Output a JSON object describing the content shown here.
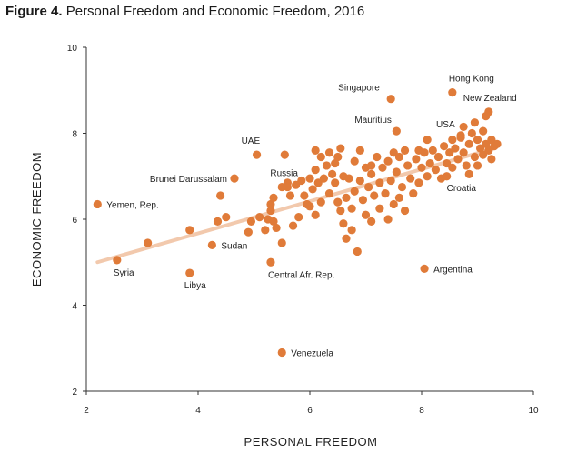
{
  "figure_label": "Figure 4.",
  "figure_title": "Personal Freedom and Economic Freedom, 2016",
  "colors": {
    "point": "#e07b39",
    "trend": "#f2c9ad",
    "axis": "#333333"
  },
  "chart_data": {
    "type": "scatter",
    "title": "Personal Freedom and Economic Freedom, 2016",
    "xlabel": "PERSONAL FREEDOM",
    "ylabel": "ECONOMIC FREEDOM",
    "xlim": [
      2,
      10
    ],
    "ylim": [
      2,
      10
    ],
    "xticks": [
      2,
      4,
      6,
      8,
      10
    ],
    "yticks": [
      2,
      4,
      6,
      8,
      10
    ],
    "grid": false,
    "trendline": {
      "x": [
        2.2,
        9.3
      ],
      "y": [
        5.0,
        7.65
      ]
    },
    "labeled_points": [
      {
        "name": "Yemen, Rep.",
        "x": 2.2,
        "y": 6.35
      },
      {
        "name": "Syria",
        "x": 2.55,
        "y": 5.05
      },
      {
        "name": "Libya",
        "x": 3.85,
        "y": 4.75
      },
      {
        "name": "Sudan",
        "x": 4.25,
        "y": 5.4
      },
      {
        "name": "Brunei Darussalam",
        "x": 4.65,
        "y": 6.95
      },
      {
        "name": "UAE",
        "x": 5.05,
        "y": 7.5
      },
      {
        "name": "Russia",
        "x": 5.6,
        "y": 6.75
      },
      {
        "name": "Central Afr. Rep.",
        "x": 5.3,
        "y": 5.0
      },
      {
        "name": "Venezuela",
        "x": 5.5,
        "y": 2.9
      },
      {
        "name": "Singapore",
        "x": 7.45,
        "y": 8.8
      },
      {
        "name": "Mauritius",
        "x": 7.55,
        "y": 8.05
      },
      {
        "name": "Hong Kong",
        "x": 8.55,
        "y": 8.95
      },
      {
        "name": "New Zealand",
        "x": 9.2,
        "y": 8.5
      },
      {
        "name": "USA",
        "x": 8.7,
        "y": 7.95
      },
      {
        "name": "Croatia",
        "x": 8.45,
        "y": 7.0
      },
      {
        "name": "Argentina",
        "x": 8.05,
        "y": 4.85
      }
    ],
    "points": [
      {
        "x": 3.1,
        "y": 5.45
      },
      {
        "x": 3.85,
        "y": 5.75
      },
      {
        "x": 4.35,
        "y": 5.95
      },
      {
        "x": 4.4,
        "y": 6.55
      },
      {
        "x": 4.5,
        "y": 6.05
      },
      {
        "x": 4.9,
        "y": 5.7
      },
      {
        "x": 4.95,
        "y": 5.95
      },
      {
        "x": 5.1,
        "y": 6.05
      },
      {
        "x": 5.2,
        "y": 5.75
      },
      {
        "x": 5.25,
        "y": 6.0
      },
      {
        "x": 5.3,
        "y": 6.35
      },
      {
        "x": 5.3,
        "y": 6.2
      },
      {
        "x": 5.35,
        "y": 6.5
      },
      {
        "x": 5.35,
        "y": 5.95
      },
      {
        "x": 5.4,
        "y": 5.8
      },
      {
        "x": 5.5,
        "y": 6.75
      },
      {
        "x": 5.5,
        "y": 5.45
      },
      {
        "x": 5.55,
        "y": 7.5
      },
      {
        "x": 5.6,
        "y": 6.85
      },
      {
        "x": 5.65,
        "y": 6.55
      },
      {
        "x": 5.7,
        "y": 5.85
      },
      {
        "x": 5.75,
        "y": 6.8
      },
      {
        "x": 5.8,
        "y": 6.05
      },
      {
        "x": 5.85,
        "y": 6.9
      },
      {
        "x": 5.9,
        "y": 6.55
      },
      {
        "x": 5.95,
        "y": 6.35
      },
      {
        "x": 6.0,
        "y": 6.95
      },
      {
        "x": 6.05,
        "y": 6.7
      },
      {
        "x": 6.0,
        "y": 6.3
      },
      {
        "x": 6.1,
        "y": 6.1
      },
      {
        "x": 6.1,
        "y": 7.15
      },
      {
        "x": 6.15,
        "y": 6.85
      },
      {
        "x": 6.2,
        "y": 6.4
      },
      {
        "x": 6.1,
        "y": 7.6
      },
      {
        "x": 6.2,
        "y": 7.45
      },
      {
        "x": 6.25,
        "y": 6.95
      },
      {
        "x": 6.3,
        "y": 7.25
      },
      {
        "x": 6.35,
        "y": 6.6
      },
      {
        "x": 6.35,
        "y": 7.55
      },
      {
        "x": 6.4,
        "y": 7.05
      },
      {
        "x": 6.45,
        "y": 6.85
      },
      {
        "x": 6.45,
        "y": 7.3
      },
      {
        "x": 6.5,
        "y": 7.45
      },
      {
        "x": 6.5,
        "y": 6.4
      },
      {
        "x": 6.55,
        "y": 7.65
      },
      {
        "x": 6.55,
        "y": 6.2
      },
      {
        "x": 6.6,
        "y": 7.0
      },
      {
        "x": 6.6,
        "y": 5.9
      },
      {
        "x": 6.65,
        "y": 6.5
      },
      {
        "x": 6.65,
        "y": 5.55
      },
      {
        "x": 6.7,
        "y": 6.95
      },
      {
        "x": 6.75,
        "y": 6.25
      },
      {
        "x": 6.75,
        "y": 5.75
      },
      {
        "x": 6.8,
        "y": 7.35
      },
      {
        "x": 6.8,
        "y": 6.65
      },
      {
        "x": 6.85,
        "y": 5.25
      },
      {
        "x": 6.9,
        "y": 7.6
      },
      {
        "x": 6.9,
        "y": 6.9
      },
      {
        "x": 6.95,
        "y": 6.45
      },
      {
        "x": 7.0,
        "y": 7.2
      },
      {
        "x": 7.0,
        "y": 6.1
      },
      {
        "x": 7.05,
        "y": 6.75
      },
      {
        "x": 7.1,
        "y": 7.05
      },
      {
        "x": 7.1,
        "y": 5.95
      },
      {
        "x": 7.15,
        "y": 6.55
      },
      {
        "x": 7.2,
        "y": 7.45
      },
      {
        "x": 7.25,
        "y": 6.85
      },
      {
        "x": 7.25,
        "y": 6.25
      },
      {
        "x": 7.3,
        "y": 7.2
      },
      {
        "x": 7.35,
        "y": 6.6
      },
      {
        "x": 7.4,
        "y": 7.35
      },
      {
        "x": 7.4,
        "y": 6.0
      },
      {
        "x": 7.45,
        "y": 6.9
      },
      {
        "x": 7.5,
        "y": 7.55
      },
      {
        "x": 7.5,
        "y": 6.35
      },
      {
        "x": 7.55,
        "y": 7.1
      },
      {
        "x": 7.6,
        "y": 6.5
      },
      {
        "x": 7.6,
        "y": 7.45
      },
      {
        "x": 7.65,
        "y": 6.75
      },
      {
        "x": 7.7,
        "y": 7.6
      },
      {
        "x": 7.7,
        "y": 6.2
      },
      {
        "x": 7.75,
        "y": 7.25
      },
      {
        "x": 7.8,
        "y": 6.95
      },
      {
        "x": 7.85,
        "y": 6.6
      },
      {
        "x": 7.9,
        "y": 7.4
      },
      {
        "x": 7.95,
        "y": 6.85
      },
      {
        "x": 8.0,
        "y": 7.2
      },
      {
        "x": 8.05,
        "y": 7.55
      },
      {
        "x": 8.1,
        "y": 7.0
      },
      {
        "x": 8.1,
        "y": 7.85
      },
      {
        "x": 8.15,
        "y": 7.3
      },
      {
        "x": 8.2,
        "y": 7.6
      },
      {
        "x": 8.25,
        "y": 7.15
      },
      {
        "x": 8.3,
        "y": 7.45
      },
      {
        "x": 8.35,
        "y": 6.95
      },
      {
        "x": 8.4,
        "y": 7.7
      },
      {
        "x": 8.45,
        "y": 7.3
      },
      {
        "x": 8.5,
        "y": 7.55
      },
      {
        "x": 8.55,
        "y": 7.85
      },
      {
        "x": 8.55,
        "y": 7.2
      },
      {
        "x": 8.6,
        "y": 7.65
      },
      {
        "x": 8.65,
        "y": 7.4
      },
      {
        "x": 8.7,
        "y": 7.9
      },
      {
        "x": 8.75,
        "y": 7.55
      },
      {
        "x": 8.8,
        "y": 7.25
      },
      {
        "x": 8.85,
        "y": 7.75
      },
      {
        "x": 8.85,
        "y": 7.05
      },
      {
        "x": 8.9,
        "y": 8.0
      },
      {
        "x": 8.95,
        "y": 7.45
      },
      {
        "x": 9.0,
        "y": 7.85
      },
      {
        "x": 9.0,
        "y": 7.25
      },
      {
        "x": 9.05,
        "y": 7.65
      },
      {
        "x": 9.1,
        "y": 8.05
      },
      {
        "x": 9.1,
        "y": 7.5
      },
      {
        "x": 9.15,
        "y": 7.75
      },
      {
        "x": 9.15,
        "y": 8.4
      },
      {
        "x": 9.2,
        "y": 7.6
      },
      {
        "x": 9.25,
        "y": 7.85
      },
      {
        "x": 9.25,
        "y": 7.4
      },
      {
        "x": 9.3,
        "y": 7.7
      },
      {
        "x": 9.35,
        "y": 7.75
      },
      {
        "x": 8.75,
        "y": 8.15
      },
      {
        "x": 8.95,
        "y": 8.25
      },
      {
        "x": 7.95,
        "y": 7.6
      },
      {
        "x": 7.1,
        "y": 7.25
      }
    ]
  }
}
